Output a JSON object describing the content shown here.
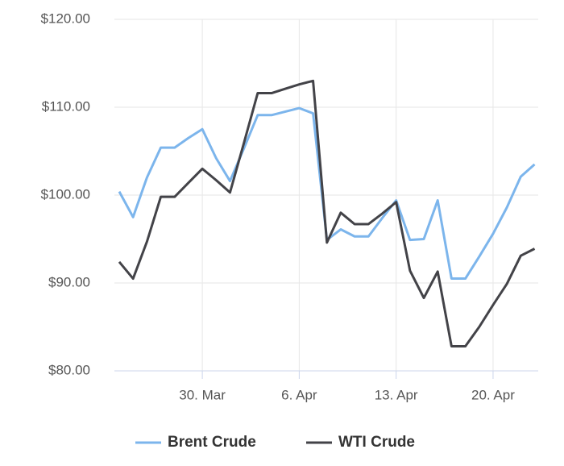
{
  "chart_data": {
    "type": "line",
    "categories": [
      null,
      null,
      null,
      null,
      null,
      null,
      "30. Mar",
      null,
      null,
      null,
      null,
      null,
      null,
      "6. Apr",
      null,
      null,
      null,
      null,
      null,
      null,
      "13. Apr",
      null,
      null,
      null,
      null,
      null,
      null,
      "20. Apr",
      null,
      null,
      null
    ],
    "series": [
      {
        "name": "Brent Crude",
        "color": "#7cb5ec",
        "values": [
          100.4,
          97.5,
          102,
          105.4,
          105.4,
          106.5,
          107.5,
          104.2,
          101.6,
          105.3,
          109.1,
          109.1,
          109.5,
          109.9,
          109.3,
          94.9,
          96.1,
          95.3,
          95.3,
          97.4,
          99.4,
          94.9,
          95,
          99.4,
          90.5,
          90.5,
          93,
          95.6,
          98.6,
          102.1,
          103.5
        ]
      },
      {
        "name": "WTI Crude",
        "color": "#434348",
        "values": [
          92.4,
          90.5,
          94.7,
          99.8,
          99.8,
          101.4,
          103,
          101.7,
          100.3,
          105.9,
          111.6,
          111.6,
          112.1,
          112.6,
          113,
          94.6,
          98,
          96.7,
          96.7,
          97.9,
          99.2,
          91.4,
          88.3,
          91.3,
          82.8,
          82.8,
          85,
          87.5,
          89.9,
          93.1,
          93.9
        ]
      }
    ],
    "ylim": [
      80,
      120
    ],
    "yticks": [
      {
        "value": 80,
        "label": "$80.00"
      },
      {
        "value": 90,
        "label": "$90.00"
      },
      {
        "value": 100,
        "label": "$100.00"
      },
      {
        "value": 110,
        "label": "$110.00"
      },
      {
        "value": 120,
        "label": "$120.00"
      }
    ],
    "grid": true,
    "legend": "bottom"
  }
}
